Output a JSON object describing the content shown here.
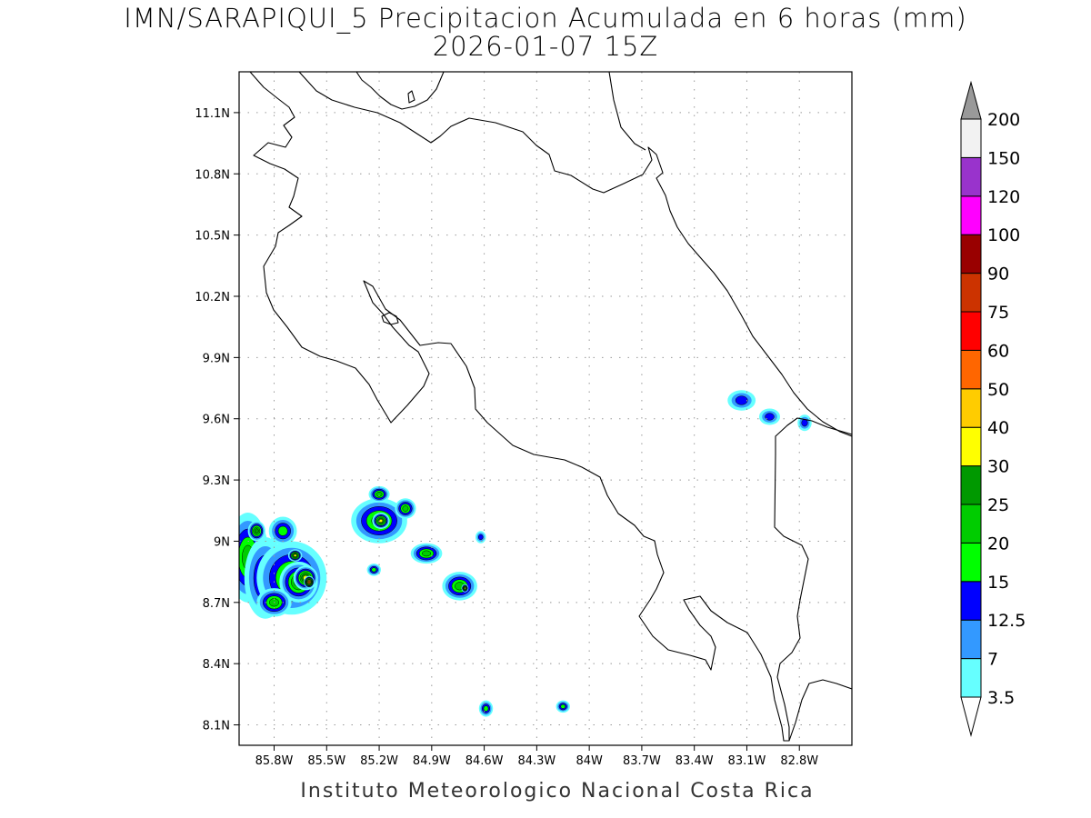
{
  "title": {
    "line1": "IMN/SARAPIQUI_5 Precipitacion Acumulada en 6 horas (mm)",
    "line2": "2026-01-07 15Z"
  },
  "footer": "Instituto Meteorologico Nacional Costa Rica",
  "map": {
    "lat_range": [
      8.0,
      11.3
    ],
    "lon_range": [
      -86.0,
      -82.5
    ],
    "lat_ticks": [
      {
        "value": 11.1,
        "label": "11.1N"
      },
      {
        "value": 10.8,
        "label": "10.8N"
      },
      {
        "value": 10.5,
        "label": "10.5N"
      },
      {
        "value": 10.2,
        "label": "10.2N"
      },
      {
        "value": 9.9,
        "label": "9.9N"
      },
      {
        "value": 9.6,
        "label": "9.6N"
      },
      {
        "value": 9.3,
        "label": "9.3N"
      },
      {
        "value": 9.0,
        "label": "9N"
      },
      {
        "value": 8.7,
        "label": "8.7N"
      },
      {
        "value": 8.4,
        "label": "8.4N"
      },
      {
        "value": 8.1,
        "label": "8.1N"
      }
    ],
    "lon_ticks": [
      {
        "value": -85.8,
        "label": "85.8W"
      },
      {
        "value": -85.5,
        "label": "85.5W"
      },
      {
        "value": -85.2,
        "label": "85.2W"
      },
      {
        "value": -84.9,
        "label": "84.9W"
      },
      {
        "value": -84.6,
        "label": "84.6W"
      },
      {
        "value": -84.3,
        "label": "84.3W"
      },
      {
        "value": -84.0,
        "label": "84W"
      },
      {
        "value": -83.7,
        "label": "83.7W"
      },
      {
        "value": -83.4,
        "label": "83.4W"
      },
      {
        "value": -83.1,
        "label": "83.1W"
      },
      {
        "value": -82.8,
        "label": "82.8W"
      }
    ],
    "grid": true
  },
  "colorbar": {
    "levels": [
      {
        "label": "3.5",
        "color": "#66ffff"
      },
      {
        "label": "7",
        "color": "#3399ff"
      },
      {
        "label": "12.5",
        "color": "#0000ff"
      },
      {
        "label": "15",
        "color": "#00ff00"
      },
      {
        "label": "20",
        "color": "#00cc00"
      },
      {
        "label": "25",
        "color": "#009900"
      },
      {
        "label": "30",
        "color": "#ffff00"
      },
      {
        "label": "40",
        "color": "#ffcc00"
      },
      {
        "label": "50",
        "color": "#ff6600"
      },
      {
        "label": "60",
        "color": "#ff0000"
      },
      {
        "label": "75",
        "color": "#cc3300"
      },
      {
        "label": "90",
        "color": "#990000"
      },
      {
        "label": "100",
        "color": "#ff00ff"
      },
      {
        "label": "120",
        "color": "#9933cc"
      },
      {
        "label": "150",
        "color": "#f2f2f2"
      },
      {
        "label": "200",
        "color": "#999999"
      }
    ]
  },
  "precip_cells": [
    {
      "lon": -85.95,
      "lat": 8.92,
      "rx": 0.12,
      "ry": 0.22,
      "level": 4
    },
    {
      "lon": -85.85,
      "lat": 8.82,
      "rx": 0.12,
      "ry": 0.2,
      "level": 3
    },
    {
      "lon": -85.7,
      "lat": 8.82,
      "rx": 0.2,
      "ry": 0.18,
      "level": 4
    },
    {
      "lon": -85.66,
      "lat": 8.8,
      "rx": 0.11,
      "ry": 0.1,
      "level": 5
    },
    {
      "lon": -85.62,
      "lat": 8.82,
      "rx": 0.07,
      "ry": 0.06,
      "level": 6
    },
    {
      "lon": -85.6,
      "lat": 8.8,
      "rx": 0.03,
      "ry": 0.03,
      "level": 8
    },
    {
      "lon": -85.68,
      "lat": 8.93,
      "rx": 0.04,
      "ry": 0.03,
      "level": 6
    },
    {
      "lon": -85.8,
      "lat": 8.7,
      "rx": 0.1,
      "ry": 0.07,
      "level": 4
    },
    {
      "lon": -85.75,
      "lat": 9.05,
      "rx": 0.08,
      "ry": 0.07,
      "level": 3
    },
    {
      "lon": -85.9,
      "lat": 9.05,
      "rx": 0.05,
      "ry": 0.05,
      "level": 5
    },
    {
      "lon": -85.2,
      "lat": 9.1,
      "rx": 0.16,
      "ry": 0.11,
      "level": 4
    },
    {
      "lon": -85.19,
      "lat": 9.1,
      "rx": 0.05,
      "ry": 0.04,
      "level": 6
    },
    {
      "lon": -85.05,
      "lat": 9.16,
      "rx": 0.06,
      "ry": 0.05,
      "level": 4
    },
    {
      "lon": -85.2,
      "lat": 9.23,
      "rx": 0.06,
      "ry": 0.04,
      "level": 4
    },
    {
      "lon": -84.93,
      "lat": 8.94,
      "rx": 0.09,
      "ry": 0.05,
      "level": 4
    },
    {
      "lon": -84.74,
      "lat": 8.78,
      "rx": 0.1,
      "ry": 0.07,
      "level": 4
    },
    {
      "lon": -84.71,
      "lat": 8.77,
      "rx": 0.02,
      "ry": 0.02,
      "level": 6
    },
    {
      "lon": -85.23,
      "lat": 8.86,
      "rx": 0.04,
      "ry": 0.03,
      "level": 3
    },
    {
      "lon": -84.59,
      "lat": 8.18,
      "rx": 0.04,
      "ry": 0.04,
      "level": 3
    },
    {
      "lon": -84.15,
      "lat": 8.19,
      "rx": 0.04,
      "ry": 0.03,
      "level": 3
    },
    {
      "lon": -84.62,
      "lat": 9.02,
      "rx": 0.03,
      "ry": 0.03,
      "level": 2
    },
    {
      "lon": -83.13,
      "lat": 9.69,
      "rx": 0.08,
      "ry": 0.05,
      "level": 2
    },
    {
      "lon": -82.97,
      "lat": 9.61,
      "rx": 0.06,
      "ry": 0.04,
      "level": 2
    },
    {
      "lon": -82.77,
      "lat": 9.58,
      "rx": 0.04,
      "ry": 0.04,
      "level": 2
    }
  ]
}
